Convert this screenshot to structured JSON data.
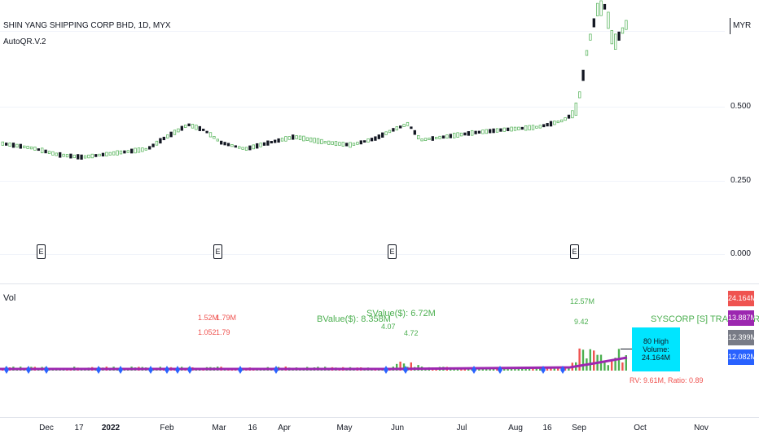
{
  "header": {
    "symbol_line": "SHIN YANG SHIPPING CORP BHD, 1D, MYX",
    "indicator_name": "AutoQR.V.2",
    "currency": "MYR"
  },
  "price_axis": {
    "ticks": [
      "0.500",
      "0.250",
      "0.000"
    ]
  },
  "earnings": {
    "label": "E"
  },
  "volume_pane": {
    "title": "Vol",
    "stats_red_top": "1.52M",
    "stats_red_top2": "1.79M",
    "stats_red_bottom": "1.052",
    "stats_red_bottom2": "1.79",
    "bvalue_text": "BValue($): 8.358M",
    "svalue_text": "SValue($): 6.72M",
    "green_small_a": "4.07",
    "green_small_b": "4.72",
    "green_top_value": "12.57M",
    "green_top_value2": "9.42",
    "sector_text": "SYSCORP [S] TRANSPORTATION",
    "high_volume_label": "80 High Volume: 24.164M",
    "rv_ratio_text": "RV: 9.61M, Ratio: 0.89"
  },
  "volume_axis": [
    {
      "label": "24.164M",
      "color": "#ef5350"
    },
    {
      "label": "13.887M",
      "color": "#9c27b0"
    },
    {
      "label": "12.399M",
      "color": "#787b86"
    },
    {
      "label": "12.082M",
      "color": "#2962ff"
    }
  ],
  "time_axis": [
    "Dec",
    "17",
    "2022",
    "Feb",
    "Mar",
    "16",
    "Apr",
    "May",
    "Jun",
    "Jul",
    "Aug",
    "16",
    "Sep",
    "Oct",
    "Nov"
  ],
  "colors": {
    "up": "#26a69a",
    "green": "#4caf50",
    "magenta": "#9c27b0",
    "cyan": "#00e5ff",
    "red": "#ef5350"
  }
}
